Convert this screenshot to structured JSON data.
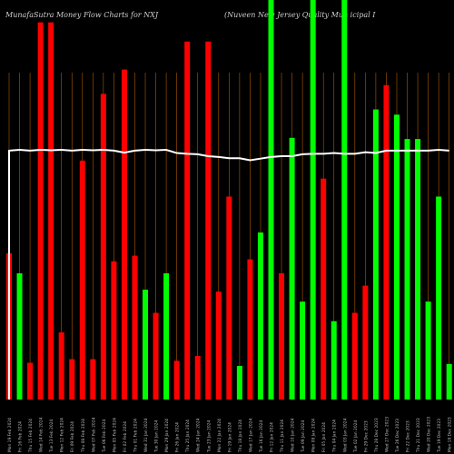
{
  "header": {
    "title": "MunafaSutra  Money Flow  Charts for NXJ",
    "subtitle": "(Nuveen  New  Jersey  Quality  Mun                icipal  I"
  },
  "colors": {
    "background": "#000000",
    "up": "#00ff00",
    "down": "#ff0000",
    "grid": "#b05a00",
    "line": "#ffffff",
    "label": "#b8b8b8"
  },
  "chart_data": {
    "type": "bar",
    "ylim": [
      0,
      100
    ],
    "categories": [
      "Mon 19 Feb 2024",
      "Fri 16 Feb 2024",
      "Thu 15 Feb 2024",
      "Wed 14 Feb 2024",
      "Tue 13 Feb 2024",
      "Mon 12 Feb 2024",
      "Fri 09 Feb 2024",
      "Thu 08 Feb 2024",
      "Wed 07 Feb 2024",
      "Tue 06 Feb 2024",
      "Mon 05 Feb 2024",
      "Fri 02 Feb 2024",
      "Thu 01 Feb 2024",
      "Wed 31 Jan 2024",
      "Tue 30 Jan 2024",
      "Mon 29 Jan 2024",
      "Fri 26 Jan 2024",
      "Thu 25 Jan 2024",
      "Wed 24 Jan 2024",
      "Tue 23 Jan 2024",
      "Mon 22 Jan 2024",
      "Fri 19 Jan 2024",
      "Thu 18 Jan 2024",
      "Wed 17 Jan 2024",
      "Tue 16 Jan 2024",
      "Fri 12 Jan 2024",
      "Thu 11 Jan 2024",
      "Wed 10 Jan 2024",
      "Tue 09 Jan 2024",
      "Mon 08 Jan 2024",
      "Fri 05 Jan 2024",
      "Thu 04 Jan 2024",
      "Wed 03 Jan 2024",
      "Tue 02 Jan 2024",
      "Fri 29 Dec 2023",
      "Thu 28 Dec 2023",
      "Wed 27 Dec 2023",
      "Tue 26 Dec 2023",
      "Fri 22 Dec 2023",
      "Thu 21 Dec 2023",
      "Wed 20 Dec 2023",
      "Tue 19 Dec 2023",
      "Mon 18 Dec 2023"
    ],
    "series": [
      {
        "values": [
          36.6,
          31.6,
          9.2,
          94.4,
          94.4,
          16.8,
          10.1,
          59.8,
          10.1,
          76.5,
          34.6,
          82.6,
          36.0,
          27.5,
          21.7,
          31.6,
          9.7,
          89.6,
          10.9,
          89.6,
          27.0,
          50.8,
          8.4,
          35.1,
          41.8,
          100.0,
          31.6,
          65.5,
          24.5,
          100.0,
          55.3,
          19.6,
          100.0,
          21.7,
          28.5,
          72.6,
          78.7,
          71.3,
          65.2,
          65.2,
          24.5,
          50.8,
          8.9
        ],
        "colors": [
          "down",
          "up",
          "down",
          "down",
          "down",
          "down",
          "down",
          "down",
          "down",
          "down",
          "down",
          "down",
          "down",
          "up",
          "down",
          "up",
          "down",
          "down",
          "down",
          "down",
          "down",
          "down",
          "up",
          "down",
          "up",
          "up",
          "down",
          "up",
          "up",
          "up",
          "down",
          "up",
          "up",
          "down",
          "down",
          "up",
          "down",
          "up",
          "up",
          "up",
          "up",
          "up",
          "up"
        ]
      }
    ],
    "line_values": [
      62.3,
      62.5,
      62.3,
      62.5,
      62.4,
      62.5,
      62.3,
      62.5,
      62.4,
      62.5,
      62.3,
      61.8,
      62.3,
      62.5,
      62.4,
      62.5,
      61.7,
      61.5,
      61.4,
      60.9,
      60.7,
      60.4,
      60.4,
      59.9,
      60.3,
      60.7,
      60.9,
      60.9,
      61.4,
      61.5,
      61.5,
      61.7,
      61.5,
      61.5,
      61.9,
      61.7,
      62.3,
      62.3,
      62.3,
      62.3,
      62.3,
      62.5,
      62.3
    ],
    "line_start": 0
  }
}
